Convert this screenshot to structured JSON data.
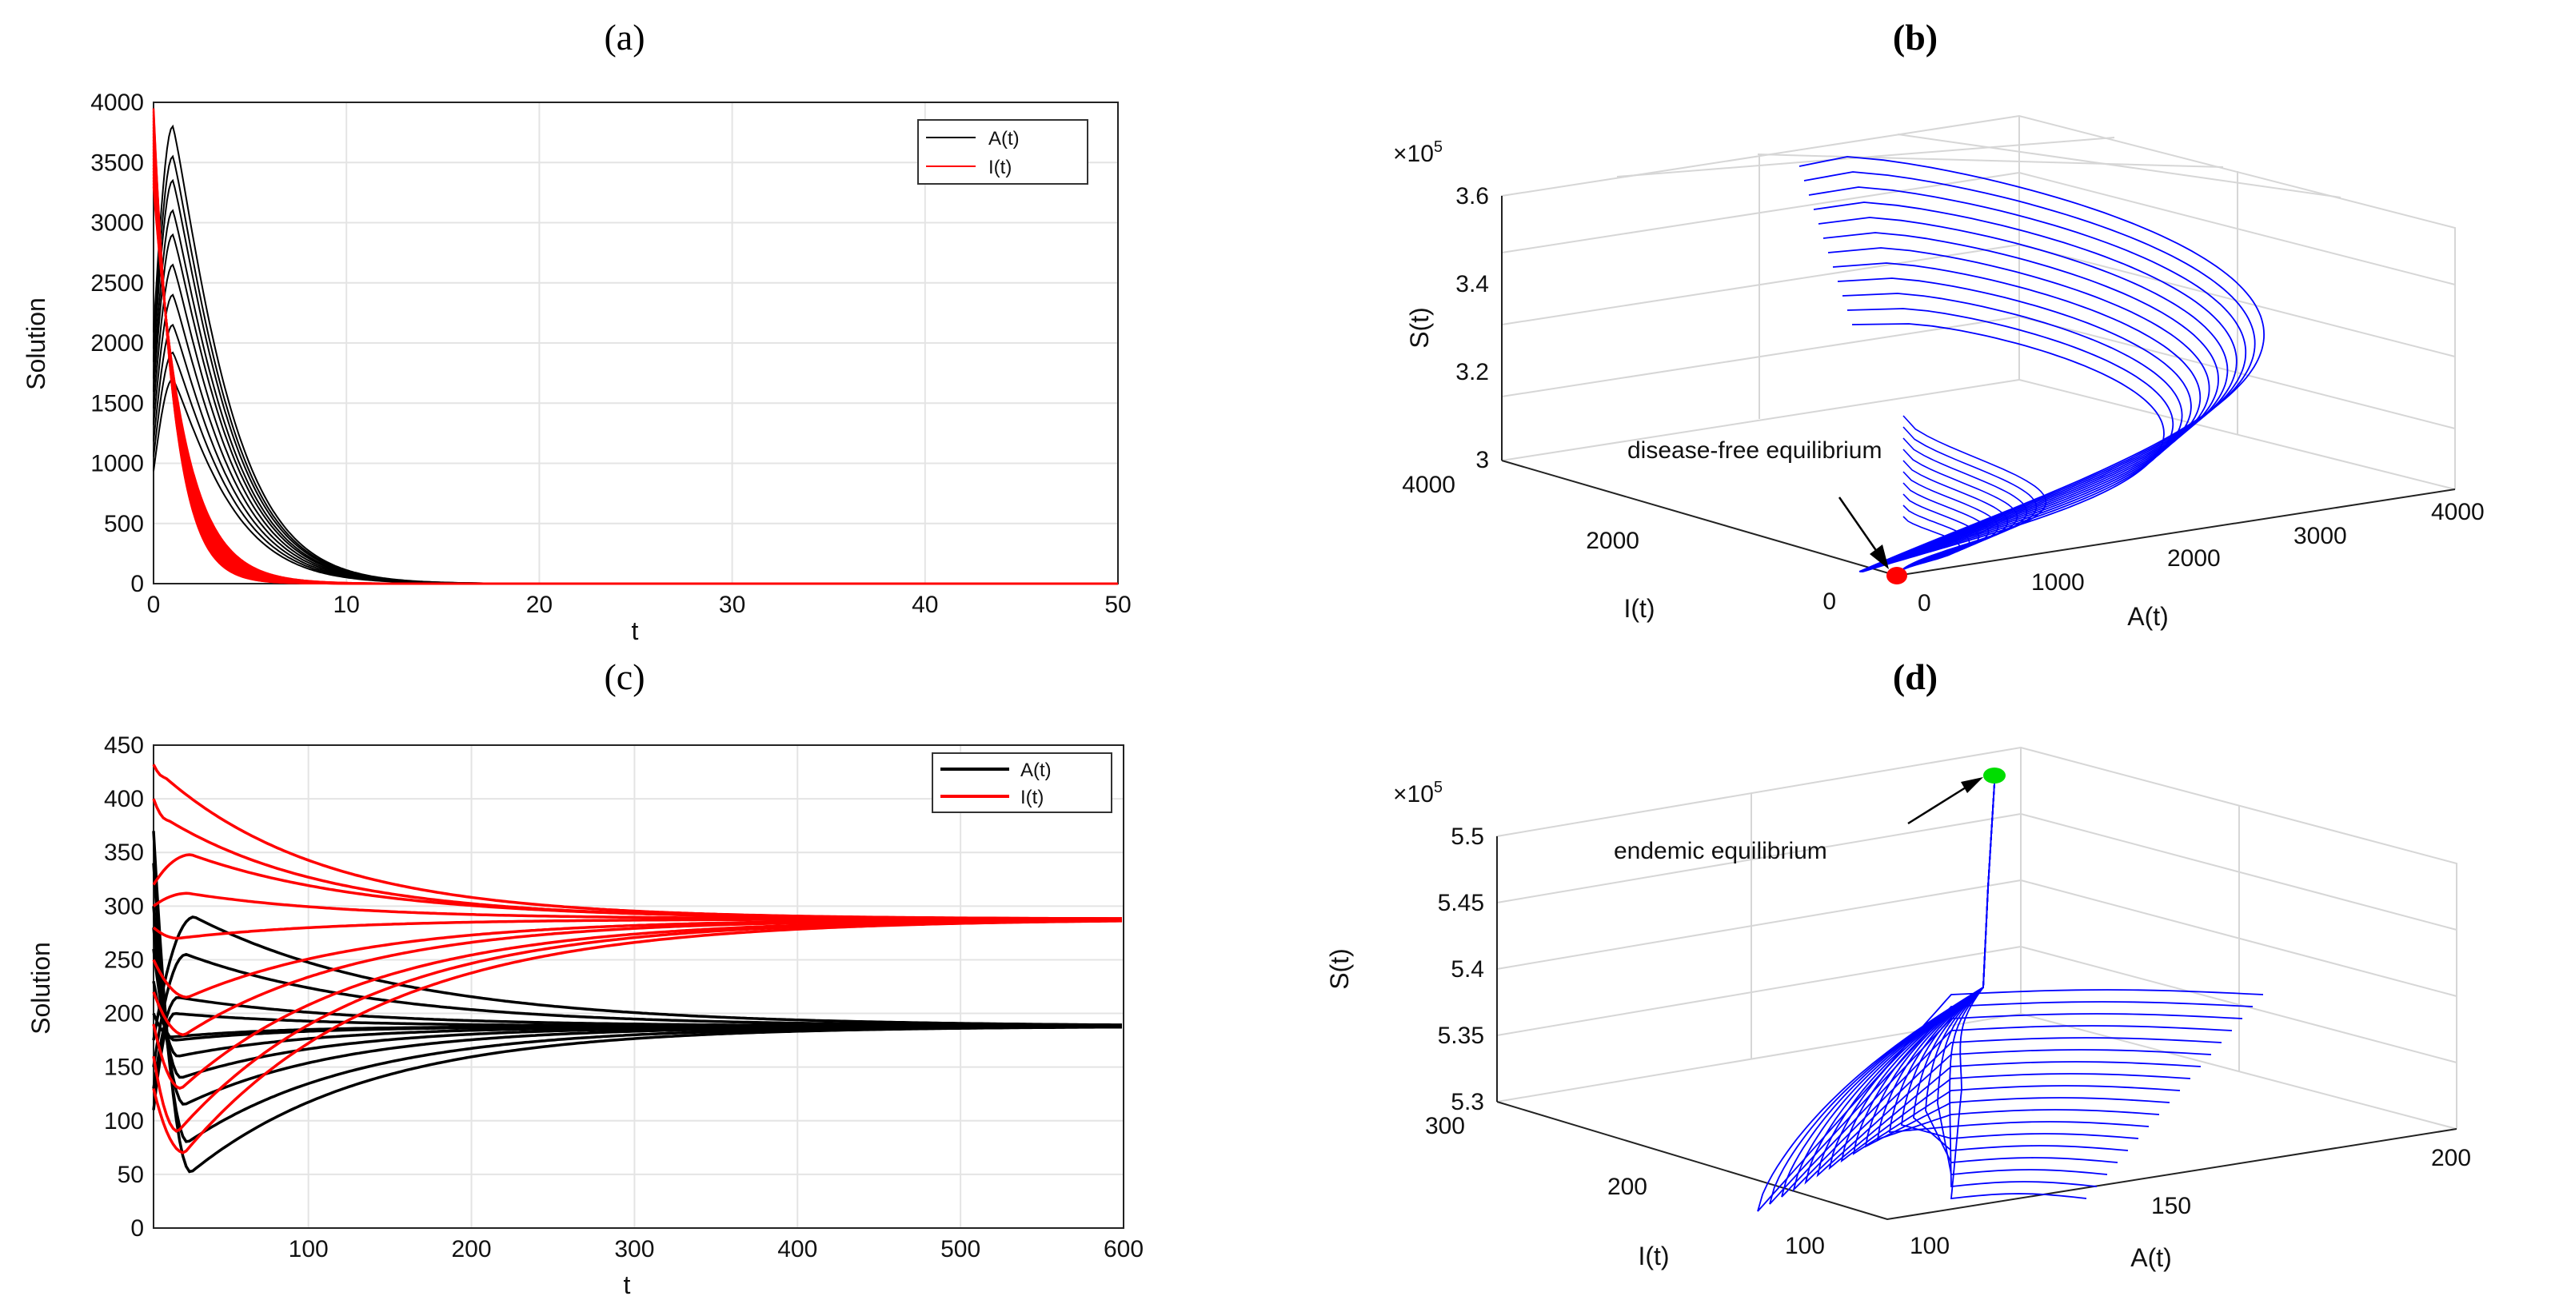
{
  "chart_data": [
    {
      "panel": "(a)",
      "type": "line",
      "xlabel": "t",
      "ylabel": "Solution",
      "xlim": [
        0,
        50
      ],
      "ylim": [
        0,
        4000
      ],
      "xticks": [
        "0",
        "10",
        "20",
        "30",
        "40",
        "50"
      ],
      "yticks": [
        "0",
        "500",
        "1000",
        "1500",
        "2000",
        "2500",
        "3000",
        "3500",
        "4000"
      ],
      "legend": [
        "A(t)",
        "I(t)"
      ],
      "legend_position": "top-right",
      "series": [
        {
          "name": "A(t)",
          "color": "#000000",
          "peak_t": 1,
          "peaks": [
            1700,
            1920,
            2150,
            2400,
            2650,
            2900,
            3100,
            3350,
            3550,
            3800
          ]
        },
        {
          "name": "I(t)",
          "color": "#ff0000",
          "initial": [
            3300,
            3400,
            3500,
            3600,
            3700,
            3800,
            3900,
            3950
          ],
          "decay_to_zero_by_t": 8
        }
      ]
    },
    {
      "panel": "(b)",
      "type": "line3d",
      "xlabel": "A(t)",
      "ylabel": "I(t)",
      "zlabel": "S(t)",
      "xticks": [
        "0",
        "1000",
        "2000",
        "3000",
        "4000"
      ],
      "yticks": [
        "0",
        "2000",
        "4000"
      ],
      "zticks": [
        "3",
        "3.2",
        "3.4",
        "3.6"
      ],
      "zscale": "×10",
      "zscale_exp": "5",
      "curves": 12,
      "line_color": "#0000ff",
      "annotation": "disease-free equilibrium",
      "marker_color": "#ff0000"
    },
    {
      "panel": "(c)",
      "type": "line",
      "xlabel": "t",
      "ylabel": "Solution",
      "xlim": [
        0,
        600
      ],
      "ylim": [
        0,
        450
      ],
      "xticks": [
        "100",
        "200",
        "300",
        "400",
        "500",
        "600"
      ],
      "yticks": [
        "0",
        "50",
        "100",
        "150",
        "200",
        "250",
        "300",
        "350",
        "400",
        "450"
      ],
      "legend": [
        "A(t)",
        "I(t)"
      ],
      "legend_position": "top-right",
      "series": [
        {
          "name": "A(t)",
          "color": "#000000",
          "equilibrium": 188,
          "initial": [
            370,
            340,
            300,
            260,
            230,
            200,
            175,
            150,
            130,
            110
          ],
          "dips": [
            50,
            80,
            115,
            140,
            160,
            165,
            170,
            175,
            180,
            185
          ]
        },
        {
          "name": "I(t)",
          "color": "#ff0000",
          "equilibrium": 288,
          "initial": [
            430,
            390,
            350,
            310,
            280,
            250,
            220,
            190,
            160,
            130
          ],
          "dips": [
            420,
            380,
            350,
            310,
            270,
            230,
            200,
            175,
            120,
            70
          ]
        }
      ]
    },
    {
      "panel": "(d)",
      "type": "line3d",
      "xlabel": "A(t)",
      "ylabel": "I(t)",
      "zlabel": "S(t)",
      "xticks": [
        "100",
        "150",
        "200"
      ],
      "yticks": [
        "100",
        "200",
        "300"
      ],
      "zticks": [
        "5.3",
        "5.35",
        "5.4",
        "5.45",
        "5.5"
      ],
      "zscale": "×10",
      "zscale_exp": "5",
      "curves": 18,
      "line_color": "#0000ff",
      "annotation": "endemic equilibrium",
      "marker_color": "#00dd00"
    }
  ]
}
